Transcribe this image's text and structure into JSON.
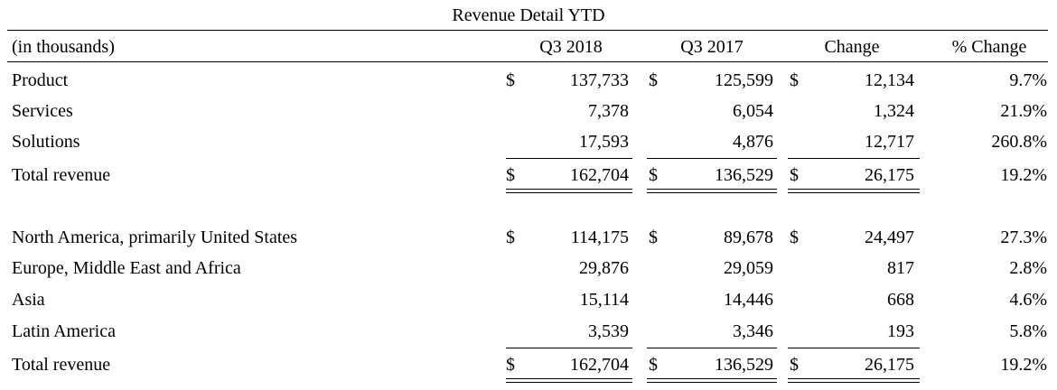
{
  "title": "Revenue Detail YTD",
  "header": {
    "label": "(in thousands)",
    "col1": "Q3 2018",
    "col2": "Q3 2017",
    "col3": "Change",
    "col4": "% Change"
  },
  "currency": "$",
  "section1": [
    {
      "label": "Product",
      "q3_2018": "137,733",
      "q3_2017": "125,599",
      "change": "12,134",
      "pct": "9.7%"
    },
    {
      "label": "Services",
      "q3_2018": "7,378",
      "q3_2017": "6,054",
      "change": "1,324",
      "pct": "21.9%"
    },
    {
      "label": "Solutions",
      "q3_2018": "17,593",
      "q3_2017": "4,876",
      "change": "12,717",
      "pct": "260.8%"
    }
  ],
  "section1_total": {
    "label": "Total revenue",
    "q3_2018": "162,704",
    "q3_2017": "136,529",
    "change": "26,175",
    "pct": "19.2%"
  },
  "section2": [
    {
      "label": "North America, primarily United States",
      "q3_2018": "114,175",
      "q3_2017": "89,678",
      "change": "24,497",
      "pct": "27.3%"
    },
    {
      "label": "Europe, Middle East and Africa",
      "q3_2018": "29,876",
      "q3_2017": "29,059",
      "change": "817",
      "pct": "2.8%"
    },
    {
      "label": "Asia",
      "q3_2018": "15,114",
      "q3_2017": "14,446",
      "change": "668",
      "pct": "4.6%"
    },
    {
      "label": "Latin America",
      "q3_2018": "3,539",
      "q3_2017": "3,346",
      "change": "193",
      "pct": "5.8%"
    }
  ],
  "section2_total": {
    "label": "Total revenue",
    "q3_2018": "162,704",
    "q3_2017": "136,529",
    "change": "26,175",
    "pct": "19.2%"
  }
}
